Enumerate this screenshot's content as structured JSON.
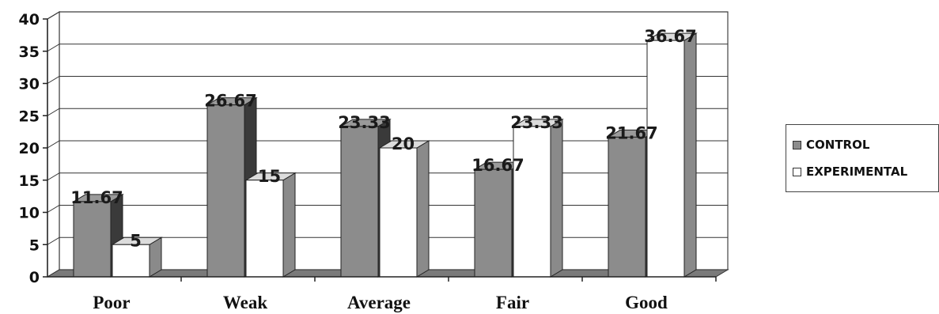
{
  "colors": {
    "control": "#8c8c8c",
    "experimental": "#ffffff"
  },
  "chart_data": {
    "type": "bar",
    "categories": [
      "Poor",
      "Weak",
      "Average",
      "Fair",
      "Good"
    ],
    "series": [
      {
        "name": "CONTROL",
        "values": [
          11.67,
          26.67,
          23.33,
          16.67,
          21.67
        ]
      },
      {
        "name": "EXPERIMENTAL",
        "values": [
          5,
          15,
          20,
          23.33,
          36.67
        ]
      }
    ],
    "data_labels": [
      [
        "11.67",
        "26.67",
        "23.33",
        "16.67",
        "21.67"
      ],
      [
        "5",
        "15",
        "20",
        "23.33",
        "36.67"
      ]
    ],
    "yticks": [
      "0",
      "5",
      "10",
      "15",
      "20",
      "25",
      "30",
      "35",
      "40"
    ],
    "ylim": [
      0,
      40
    ],
    "grid": true,
    "style": "3d",
    "legend_position": "right"
  }
}
